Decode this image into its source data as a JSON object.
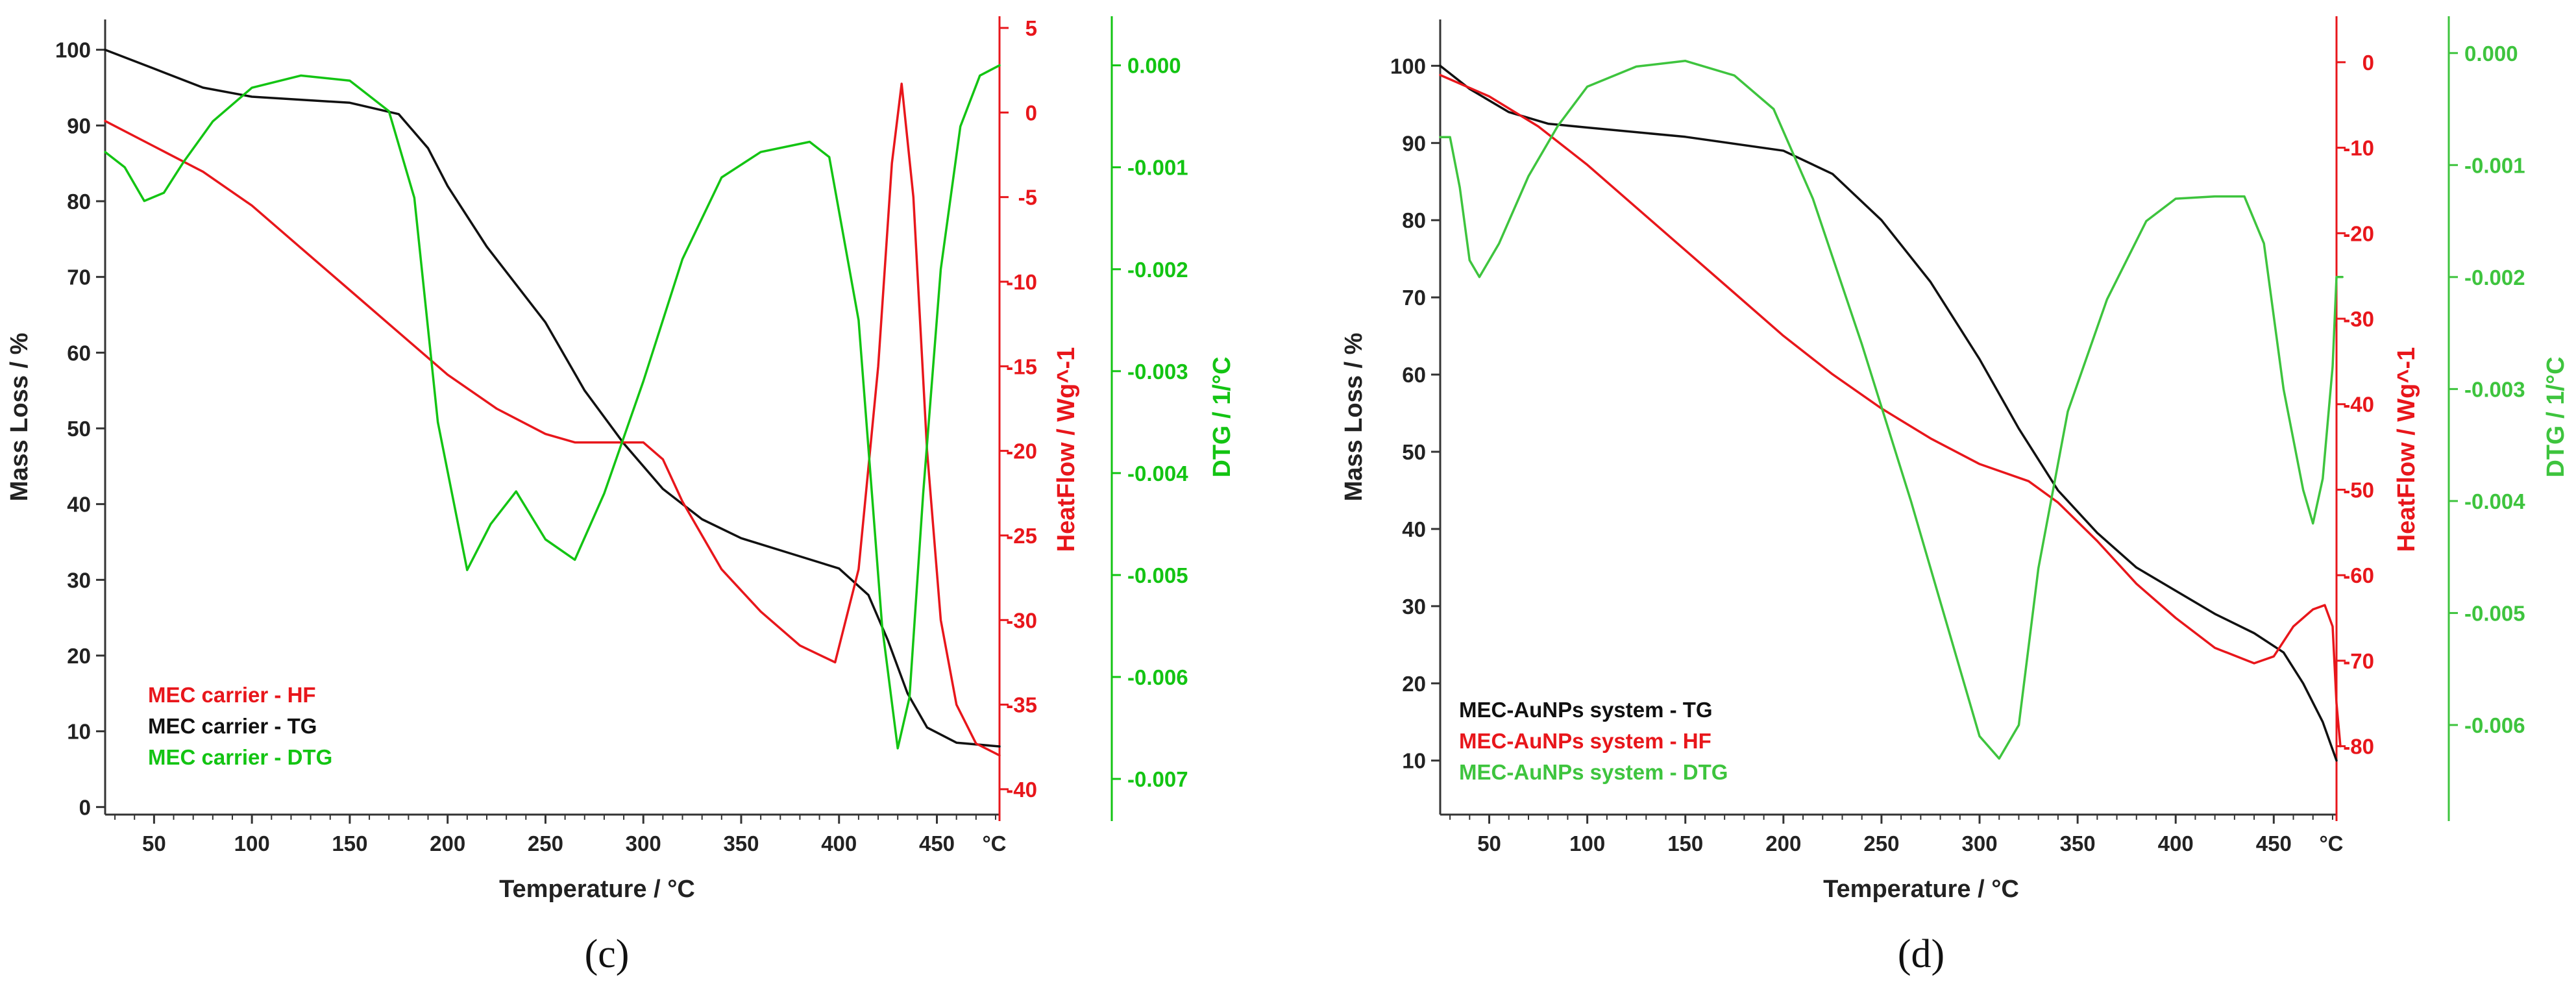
{
  "chart_data": [
    {
      "type": "line",
      "panel_label": "(c)",
      "xlabel": "Temperature /  °C",
      "x_unit_label": "°C",
      "xlim": [
        25,
        482
      ],
      "x_ticks": [
        50,
        100,
        150,
        200,
        250,
        300,
        350,
        400,
        450
      ],
      "y_left": {
        "label": "Mass Loss / %",
        "lim": [
          -1,
          104
        ],
        "ticks": [
          0,
          10,
          20,
          30,
          40,
          50,
          60,
          70,
          80,
          90,
          100
        ],
        "color": "#222222"
      },
      "y_right1": {
        "label": "HeatFlow /  Wg^-1",
        "lim": [
          -41.5,
          5.5
        ],
        "ticks": [
          5,
          0,
          -5,
          -10,
          -15,
          -20,
          -25,
          -30,
          -35,
          -40
        ],
        "color": "#e8161b"
      },
      "y_right2": {
        "label": "DTG / 1/°C",
        "lim": [
          -0.00735,
          0.00045
        ],
        "ticks": [
          "0.000",
          "-0.001",
          "-0.002",
          "-0.003",
          "-0.004",
          "-0.005",
          "-0.006",
          "-0.007"
        ],
        "color": "#13c413"
      },
      "legend": [
        {
          "text": "MEC carrier - HF",
          "color": "#e8161b"
        },
        {
          "text": "MEC carrier - TG",
          "color": "#111111"
        },
        {
          "text": "MEC carrier - DTG",
          "color": "#13c413"
        }
      ],
      "series": [
        {
          "name": "MEC carrier - TG",
          "axis": "left",
          "color": "#111111",
          "points": [
            [
              25,
              100
            ],
            [
              50,
              97.5
            ],
            [
              75,
              95
            ],
            [
              100,
              93.8
            ],
            [
              150,
              93
            ],
            [
              175,
              91.5
            ],
            [
              190,
              87
            ],
            [
              200,
              82
            ],
            [
              220,
              74
            ],
            [
              250,
              64
            ],
            [
              270,
              55
            ],
            [
              290,
              48
            ],
            [
              310,
              42
            ],
            [
              330,
              38
            ],
            [
              350,
              35.5
            ],
            [
              375,
              33.5
            ],
            [
              400,
              31.5
            ],
            [
              415,
              28
            ],
            [
              425,
              22
            ],
            [
              435,
              15
            ],
            [
              445,
              10.5
            ],
            [
              460,
              8.5
            ],
            [
              482,
              8
            ]
          ]
        },
        {
          "name": "MEC carrier - HF",
          "axis": "right1",
          "color": "#e8161b",
          "points": [
            [
              25,
              -0.5
            ],
            [
              50,
              -2
            ],
            [
              75,
              -3.5
            ],
            [
              100,
              -5.5
            ],
            [
              125,
              -8
            ],
            [
              150,
              -10.5
            ],
            [
              175,
              -13
            ],
            [
              200,
              -15.5
            ],
            [
              225,
              -17.5
            ],
            [
              250,
              -19
            ],
            [
              265,
              -19.5
            ],
            [
              280,
              -19.5
            ],
            [
              300,
              -19.5
            ],
            [
              310,
              -20.5
            ],
            [
              320,
              -23
            ],
            [
              340,
              -27
            ],
            [
              360,
              -29.5
            ],
            [
              380,
              -31.5
            ],
            [
              398,
              -32.5
            ],
            [
              410,
              -27
            ],
            [
              420,
              -15
            ],
            [
              427,
              -3
            ],
            [
              432,
              1.7
            ],
            [
              438,
              -5
            ],
            [
              445,
              -20
            ],
            [
              452,
              -30
            ],
            [
              460,
              -35
            ],
            [
              470,
              -37.3
            ],
            [
              482,
              -38
            ]
          ]
        },
        {
          "name": "MEC carrier - DTG",
          "axis": "right2",
          "color": "#13c413",
          "points": [
            [
              25,
              -0.00085
            ],
            [
              35,
              -0.001
            ],
            [
              45,
              -0.00133
            ],
            [
              55,
              -0.00125
            ],
            [
              65,
              -0.00095
            ],
            [
              80,
              -0.00055
            ],
            [
              100,
              -0.00022
            ],
            [
              125,
              -0.0001
            ],
            [
              150,
              -0.00015
            ],
            [
              170,
              -0.00045
            ],
            [
              183,
              -0.0013
            ],
            [
              195,
              -0.0035
            ],
            [
              210,
              -0.00495
            ],
            [
              222,
              -0.0045
            ],
            [
              235,
              -0.00418
            ],
            [
              250,
              -0.00465
            ],
            [
              265,
              -0.00485
            ],
            [
              280,
              -0.0042
            ],
            [
              300,
              -0.0031
            ],
            [
              320,
              -0.0019
            ],
            [
              340,
              -0.0011
            ],
            [
              360,
              -0.00085
            ],
            [
              385,
              -0.00075
            ],
            [
              395,
              -0.0009
            ],
            [
              410,
              -0.0025
            ],
            [
              422,
              -0.0055
            ],
            [
              430,
              -0.0067
            ],
            [
              436,
              -0.0062
            ],
            [
              443,
              -0.0042
            ],
            [
              452,
              -0.002
            ],
            [
              462,
              -0.0006
            ],
            [
              472,
              -0.0001
            ],
            [
              482,
              0
            ]
          ]
        }
      ]
    },
    {
      "type": "line",
      "panel_label": "(d)",
      "xlabel": "Temperature /  °C",
      "x_unit_label": "°C",
      "xlim": [
        25,
        482
      ],
      "x_ticks": [
        50,
        100,
        150,
        200,
        250,
        300,
        350,
        400,
        450
      ],
      "y_left": {
        "label": "Mass Loss /  %",
        "lim": [
          3,
          106
        ],
        "ticks": [
          10,
          20,
          30,
          40,
          50,
          60,
          70,
          80,
          90,
          100
        ],
        "color": "#222222"
      },
      "y_right1": {
        "label": "HeatFlow / Wg^-1",
        "lim": [
          -88,
          5
        ],
        "ticks": [
          0,
          -10,
          -20,
          -30,
          -40,
          -50,
          -60,
          -70,
          -80
        ],
        "color": "#e8161b"
      },
      "y_right2": {
        "label": "DTG /  1/°C",
        "lim": [
          -0.0068,
          0.0003
        ],
        "ticks": [
          "0.000",
          "-0.001",
          "-0.002",
          "-0.003",
          "-0.004",
          "-0.005",
          "-0.006"
        ],
        "color": "#3ec43e"
      },
      "legend": [
        {
          "text": "MEC-AuNPs system - TG",
          "color": "#111111"
        },
        {
          "text": "MEC-AuNPs system - HF",
          "color": "#e8161b"
        },
        {
          "text": "MEC-AuNPs system - DTG",
          "color": "#3ec43e"
        }
      ],
      "series": [
        {
          "name": "MEC-AuNPs system - TG",
          "axis": "left",
          "color": "#111111",
          "points": [
            [
              25,
              100
            ],
            [
              40,
              97
            ],
            [
              60,
              94
            ],
            [
              80,
              92.5
            ],
            [
              100,
              92
            ],
            [
              150,
              90.8
            ],
            [
              200,
              89
            ],
            [
              225,
              86
            ],
            [
              250,
              80
            ],
            [
              275,
              72
            ],
            [
              300,
              62
            ],
            [
              320,
              53
            ],
            [
              340,
              45
            ],
            [
              360,
              39.5
            ],
            [
              380,
              35
            ],
            [
              400,
              32
            ],
            [
              420,
              29
            ],
            [
              440,
              26.5
            ],
            [
              455,
              24
            ],
            [
              465,
              20
            ],
            [
              475,
              15
            ],
            [
              482,
              10
            ]
          ]
        },
        {
          "name": "MEC-AuNPs system - HF",
          "axis": "right1",
          "color": "#e8161b",
          "points": [
            [
              25,
              -1.5
            ],
            [
              50,
              -4
            ],
            [
              75,
              -7.5
            ],
            [
              100,
              -12
            ],
            [
              125,
              -17
            ],
            [
              150,
              -22
            ],
            [
              175,
              -27
            ],
            [
              200,
              -32
            ],
            [
              225,
              -36.5
            ],
            [
              250,
              -40.5
            ],
            [
              275,
              -44
            ],
            [
              300,
              -47
            ],
            [
              325,
              -49
            ],
            [
              340,
              -51.5
            ],
            [
              360,
              -56
            ],
            [
              380,
              -61
            ],
            [
              400,
              -65
            ],
            [
              420,
              -68.5
            ],
            [
              440,
              -70.3
            ],
            [
              450,
              -69.5
            ],
            [
              460,
              -66
            ],
            [
              470,
              -64
            ],
            [
              476,
              -63.5
            ],
            [
              480,
              -66
            ],
            [
              482,
              -75
            ],
            [
              484,
              -80
            ]
          ]
        },
        {
          "name": "MEC-AuNPs system - DTG",
          "axis": "right2",
          "color": "#3ec43e",
          "points": [
            [
              25,
              -0.00075
            ],
            [
              30,
              -0.00075
            ],
            [
              35,
              -0.0012
            ],
            [
              40,
              -0.00185
            ],
            [
              45,
              -0.002
            ],
            [
              55,
              -0.0017
            ],
            [
              70,
              -0.0011
            ],
            [
              85,
              -0.00065
            ],
            [
              100,
              -0.0003
            ],
            [
              125,
              -0.00012
            ],
            [
              150,
              -7e-05
            ],
            [
              175,
              -0.0002
            ],
            [
              195,
              -0.0005
            ],
            [
              215,
              -0.0013
            ],
            [
              240,
              -0.0026
            ],
            [
              265,
              -0.004
            ],
            [
              285,
              -0.0052
            ],
            [
              300,
              -0.0061
            ],
            [
              310,
              -0.0063
            ],
            [
              320,
              -0.006
            ],
            [
              330,
              -0.0046
            ],
            [
              345,
              -0.0032
            ],
            [
              365,
              -0.0022
            ],
            [
              385,
              -0.0015
            ],
            [
              400,
              -0.0013
            ],
            [
              420,
              -0.00128
            ],
            [
              435,
              -0.00128
            ],
            [
              445,
              -0.0017
            ],
            [
              455,
              -0.003
            ],
            [
              465,
              -0.0039
            ],
            [
              470,
              -0.0042
            ],
            [
              475,
              -0.0038
            ],
            [
              480,
              -0.0028
            ],
            [
              482,
              -0.002
            ],
            [
              485,
              -0.002
            ]
          ]
        }
      ]
    }
  ]
}
